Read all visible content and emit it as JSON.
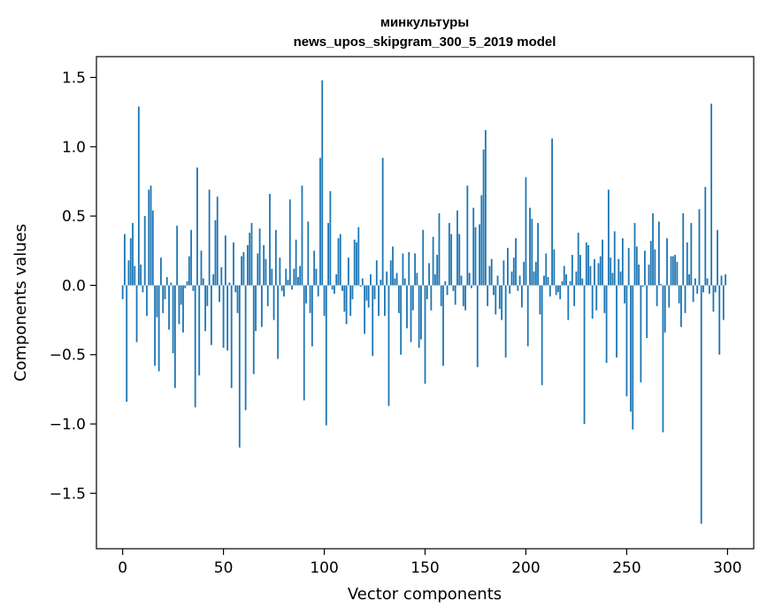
{
  "chart_data": {
    "type": "bar",
    "title_line1": "минкультуры",
    "title_line2": "news_upos_skipgram_300_5_2019 model",
    "xlabel": "Vector components",
    "ylabel": "Components values",
    "xlim": [
      -13,
      313
    ],
    "ylim": [
      -1.9,
      1.65
    ],
    "xticks": [
      0,
      50,
      100,
      150,
      200,
      250,
      300
    ],
    "xtick_labels": [
      "0",
      "50",
      "100",
      "150",
      "200",
      "250",
      "300"
    ],
    "yticks": [
      -1.5,
      -1.0,
      -0.5,
      0.0,
      0.5,
      1.0,
      1.5
    ],
    "ytick_labels": [
      "−1.5",
      "−1.0",
      "−0.5",
      "0.0",
      "0.5",
      "1.0",
      "1.5"
    ],
    "grid": false,
    "bar_color": "#1f77b4",
    "values": [
      -0.1,
      0.37,
      -0.84,
      0.18,
      0.34,
      0.45,
      0.14,
      -0.41,
      1.29,
      0.15,
      -0.05,
      0.5,
      -0.22,
      0.69,
      0.72,
      0.54,
      -0.58,
      -0.23,
      -0.62,
      0.2,
      -0.2,
      -0.1,
      0.06,
      -0.32,
      0.02,
      -0.49,
      -0.74,
      0.43,
      -0.28,
      -0.14,
      -0.34,
      -0.02,
      0.03,
      0.21,
      0.4,
      -0.04,
      -0.88,
      0.85,
      -0.65,
      0.25,
      0.05,
      -0.33,
      -0.15,
      0.69,
      -0.43,
      0.08,
      0.47,
      0.64,
      -0.12,
      0.13,
      -0.45,
      0.36,
      -0.47,
      0.02,
      -0.74,
      0.31,
      -0.05,
      -0.2,
      -1.17,
      0.21,
      0.24,
      -0.9,
      0.29,
      0.38,
      0.45,
      -0.64,
      -0.33,
      0.23,
      0.41,
      -0.3,
      0.29,
      0.19,
      -0.15,
      0.66,
      0.12,
      -0.25,
      0.4,
      -0.53,
      0.2,
      -0.04,
      -0.08,
      0.12,
      0.04,
      0.62,
      -0.03,
      0.12,
      0.33,
      0.06,
      0.14,
      0.72,
      -0.83,
      -0.13,
      0.46,
      -0.2,
      -0.44,
      0.25,
      0.12,
      -0.08,
      0.92,
      1.48,
      -0.22,
      -1.01,
      0.45,
      0.68,
      -0.03,
      -0.06,
      0.08,
      0.34,
      0.37,
      -0.04,
      -0.19,
      -0.28,
      0.2,
      -0.22,
      -0.1,
      0.33,
      0.31,
      0.42,
      -0.01,
      0.05,
      -0.35,
      -0.11,
      -0.16,
      0.08,
      -0.51,
      -0.1,
      0.18,
      -0.22,
      0.04,
      0.92,
      -0.22,
      0.1,
      -0.87,
      0.18,
      0.28,
      0.05,
      0.09,
      -0.2,
      -0.5,
      0.23,
      0.05,
      -0.31,
      0.24,
      -0.41,
      -0.18,
      0.23,
      0.09,
      -0.45,
      -0.39,
      0.4,
      -0.71,
      -0.1,
      0.16,
      -0.18,
      0.35,
      0.08,
      0.22,
      0.52,
      -0.15,
      -0.58,
      0.03,
      -0.07,
      0.45,
      0.37,
      -0.04,
      -0.14,
      0.54,
      0.37,
      0.07,
      -0.15,
      -0.18,
      0.72,
      0.09,
      -0.02,
      0.56,
      0.42,
      -0.59,
      0.44,
      0.65,
      0.98,
      1.12,
      -0.15,
      0.14,
      0.19,
      -0.07,
      -0.21,
      0.07,
      -0.17,
      -0.25,
      0.18,
      -0.52,
      0.27,
      -0.06,
      0.1,
      0.2,
      0.34,
      -0.04,
      0.07,
      -0.16,
      0.17,
      0.78,
      -0.44,
      0.56,
      0.48,
      0.1,
      0.17,
      0.45,
      -0.21,
      -0.72,
      0.07,
      0.23,
      0.06,
      -0.08,
      1.06,
      0.26,
      -0.07,
      -0.05,
      -0.1,
      0.03,
      0.14,
      0.08,
      -0.25,
      0.03,
      0.22,
      -0.15,
      0.1,
      0.38,
      0.22,
      0.05,
      -1.0,
      0.31,
      0.29,
      0.14,
      -0.24,
      0.19,
      -0.18,
      0.16,
      0.21,
      0.33,
      -0.2,
      -0.56,
      0.69,
      0.2,
      0.09,
      0.39,
      -0.52,
      0.19,
      0.1,
      0.34,
      -0.13,
      -0.8,
      0.27,
      -0.91,
      -1.04,
      0.45,
      0.28,
      0.15,
      -0.7,
      -0.01,
      0.25,
      -0.38,
      0.15,
      0.32,
      0.52,
      0.26,
      -0.15,
      0.46,
      0.01,
      -1.06,
      -0.34,
      0.34,
      -0.16,
      0.21,
      0.21,
      0.22,
      0.17,
      -0.13,
      -0.3,
      0.52,
      -0.2,
      0.31,
      0.08,
      0.45,
      -0.12,
      0.05,
      -0.06,
      0.55,
      -1.72,
      -0.05,
      0.71,
      0.05,
      -0.06,
      1.31,
      -0.19,
      -0.05,
      0.4,
      -0.5,
      0.07,
      -0.25,
      0.08
    ]
  }
}
